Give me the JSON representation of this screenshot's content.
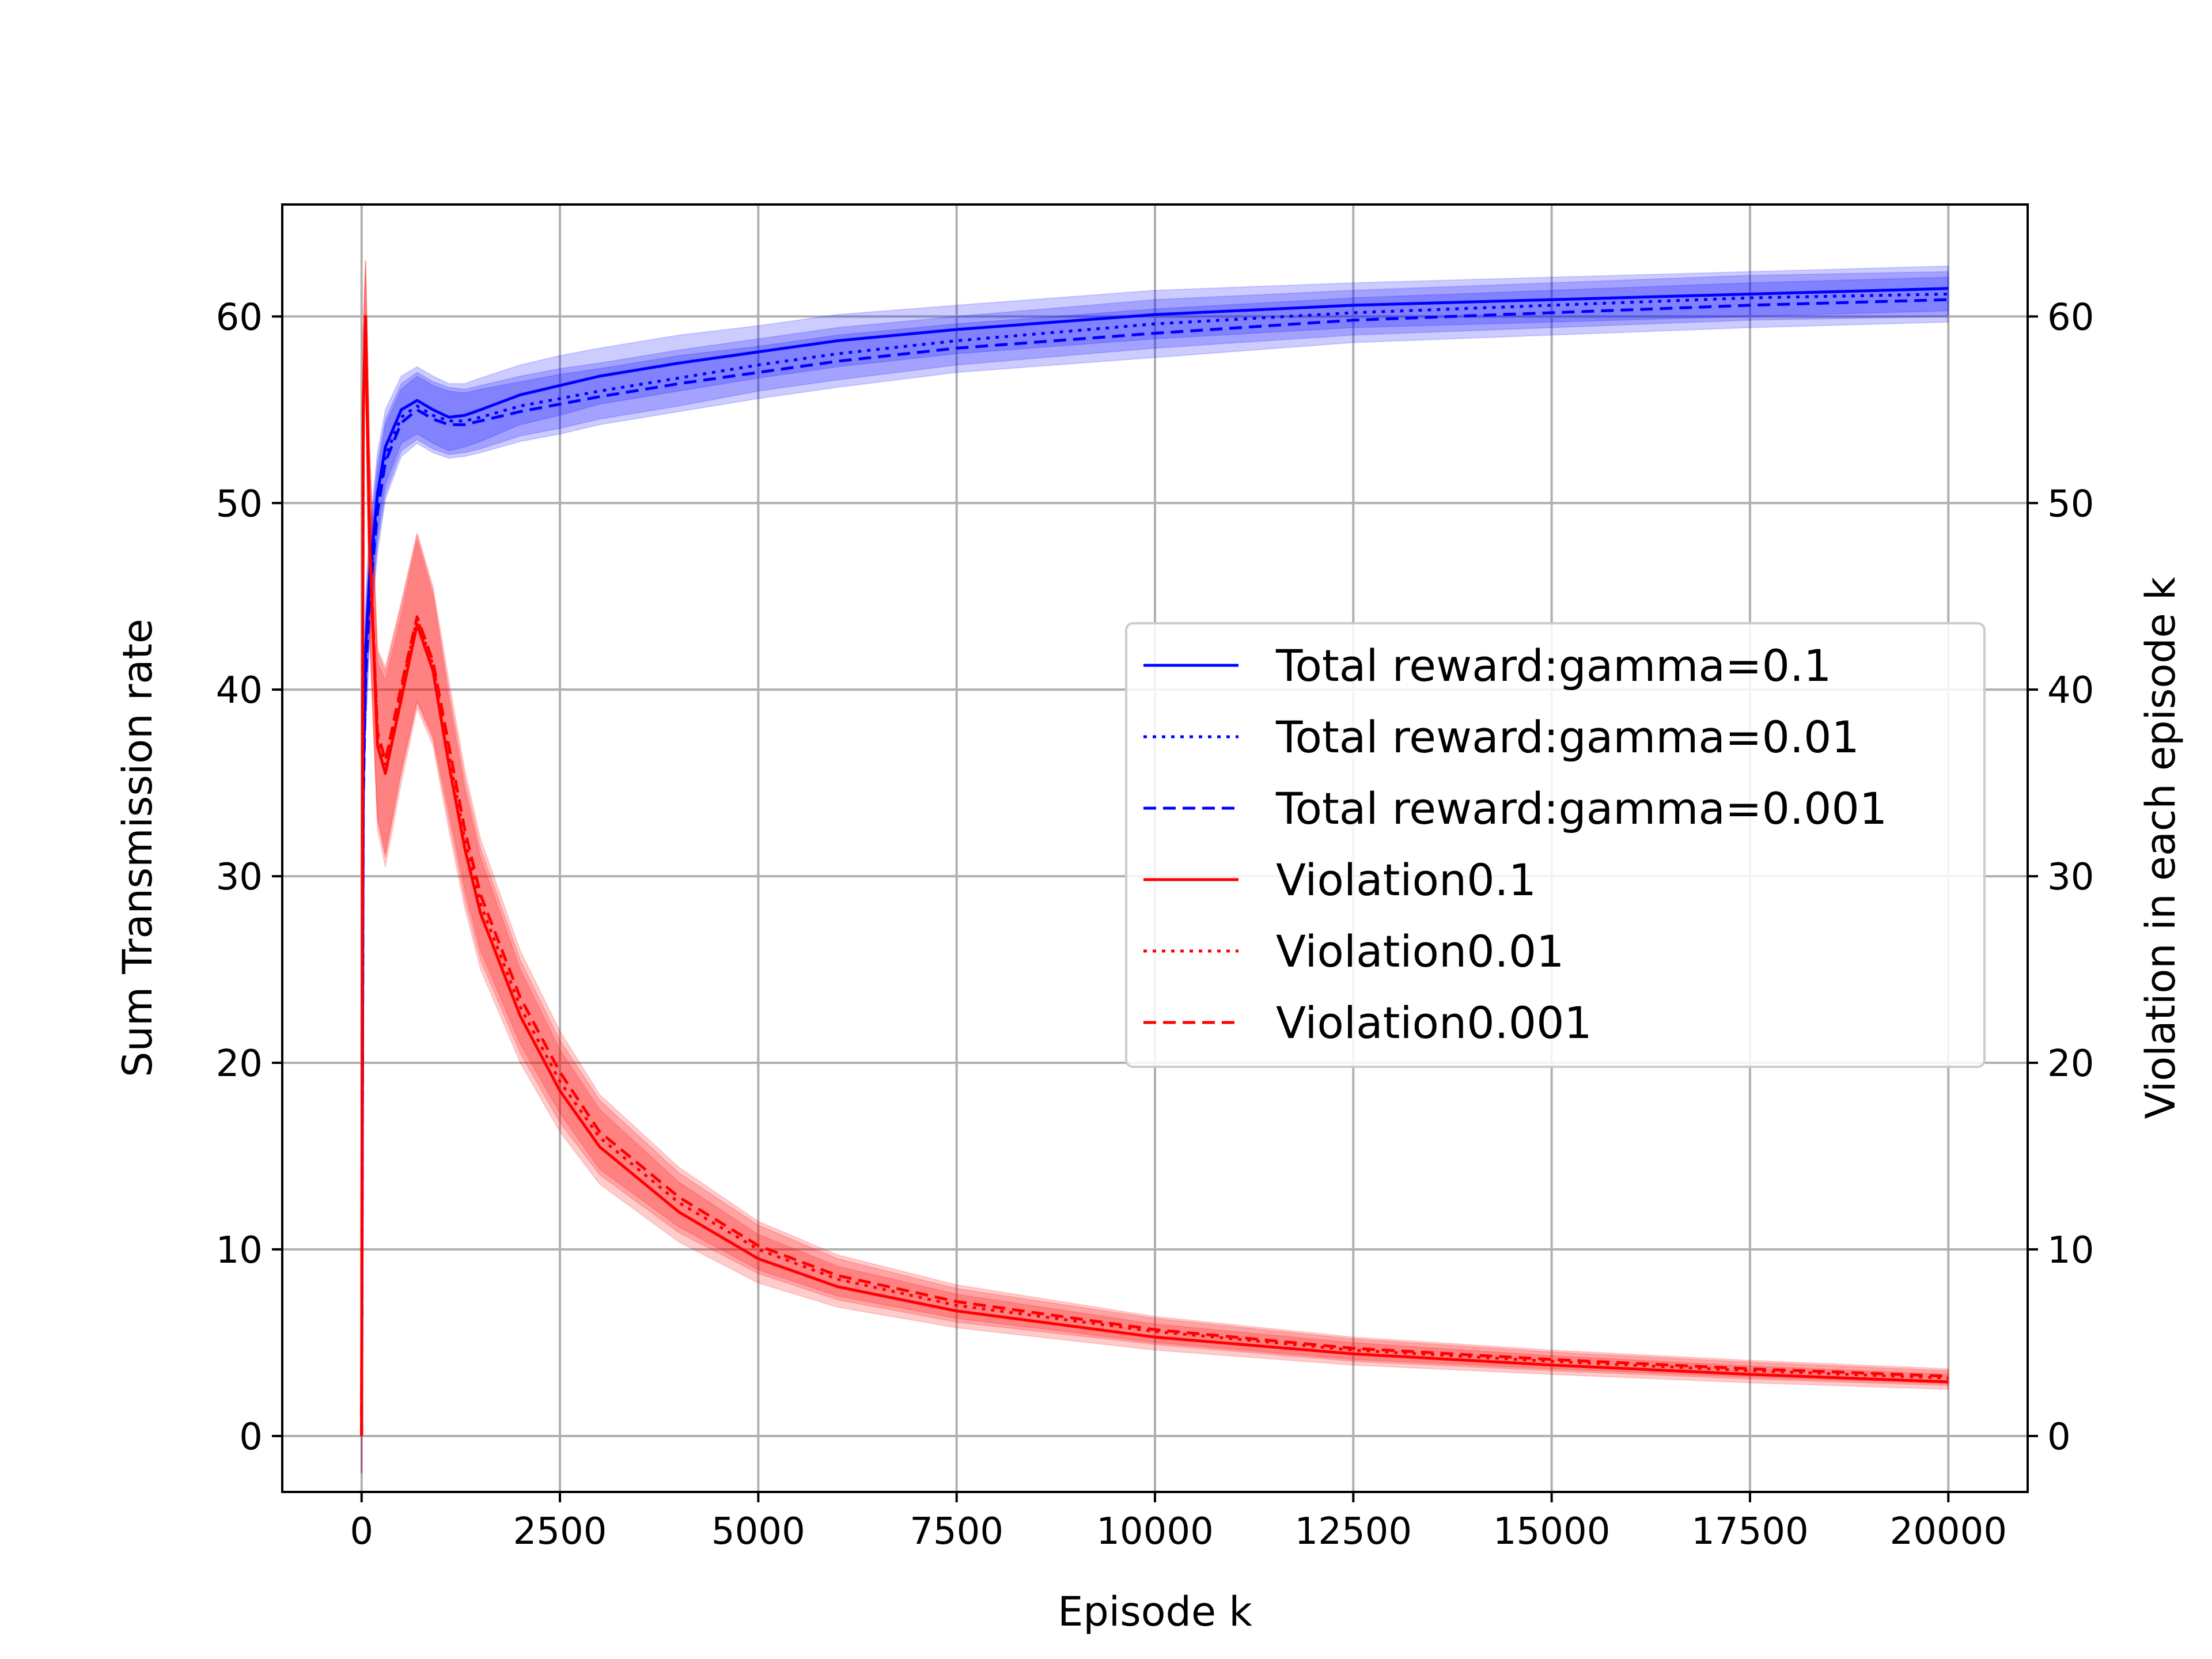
{
  "chart_data": {
    "type": "line",
    "title": "",
    "xlabel": "Episode k",
    "ylabel": "Sum Transmission rate",
    "ylabel_right": "Violation in each episode k",
    "xlim": [
      -1000,
      21000
    ],
    "ylim": [
      -3,
      66
    ],
    "ylim_right": [
      -3,
      66
    ],
    "grid": true,
    "legend_position": "center-right",
    "x_ticks": [
      0,
      2500,
      5000,
      7500,
      10000,
      12500,
      15000,
      17500,
      20000
    ],
    "x_tick_labels": [
      "0",
      "2500",
      "5000",
      "7500",
      "10000",
      "12500",
      "15000",
      "17500",
      "20000"
    ],
    "y_ticks": [
      0,
      10,
      20,
      30,
      40,
      50,
      60
    ],
    "y_tick_labels": [
      "0",
      "10",
      "20",
      "30",
      "40",
      "50",
      "60"
    ],
    "y_tick_labels_right": [
      "0",
      "10",
      "20",
      "30",
      "40",
      "50",
      "60"
    ],
    "x": [
      0,
      20,
      50,
      100,
      200,
      300,
      500,
      700,
      900,
      1100,
      1300,
      1500,
      2000,
      2500,
      3000,
      4000,
      5000,
      6000,
      7500,
      10000,
      12500,
      15000,
      17500,
      20000
    ],
    "series": [
      {
        "name": "Total reward:gamma=0.1",
        "color": "#0000ff",
        "style": "solid",
        "values": [
          0,
          36,
          42,
          46,
          50.5,
          53,
          55,
          55.5,
          55,
          54.6,
          54.7,
          55,
          55.8,
          56.3,
          56.8,
          57.5,
          58.1,
          58.7,
          59.3,
          60.1,
          60.6,
          60.9,
          61.2,
          61.5
        ],
        "band": [
          2.0,
          3.5,
          3.0,
          2.5,
          2.2,
          2.0,
          1.8,
          1.8,
          1.8,
          1.8,
          1.7,
          1.7,
          1.6,
          1.6,
          1.5,
          1.5,
          1.4,
          1.4,
          1.3,
          1.3,
          1.2,
          1.2,
          1.2,
          1.2
        ]
      },
      {
        "name": "Total reward:gamma=0.01",
        "color": "#0000ff",
        "style": "dotted",
        "values": [
          0,
          35,
          41,
          45.5,
          50,
          52.5,
          54.6,
          55.2,
          54.7,
          54.4,
          54.4,
          54.6,
          55.2,
          55.6,
          56,
          56.7,
          57.4,
          58,
          58.7,
          59.6,
          60.2,
          60.6,
          61,
          61.2
        ],
        "band": [
          2.0,
          3.5,
          3.0,
          2.5,
          2.2,
          2.0,
          1.8,
          1.8,
          1.8,
          1.8,
          1.7,
          1.7,
          1.6,
          1.6,
          1.5,
          1.5,
          1.4,
          1.4,
          1.3,
          1.3,
          1.2,
          1.2,
          1.2,
          1.2
        ]
      },
      {
        "name": "Total reward:gamma=0.001",
        "color": "#0000ff",
        "style": "dashed",
        "values": [
          0,
          34,
          40.5,
          45,
          49.5,
          52.2,
          54.3,
          55,
          54.5,
          54.2,
          54.2,
          54.4,
          54.9,
          55.3,
          55.7,
          56.4,
          57,
          57.6,
          58.3,
          59.1,
          59.8,
          60.2,
          60.6,
          60.9
        ],
        "band": [
          2.0,
          3.5,
          3.0,
          2.5,
          2.2,
          2.0,
          1.8,
          1.8,
          1.8,
          1.8,
          1.7,
          1.7,
          1.6,
          1.6,
          1.5,
          1.5,
          1.4,
          1.4,
          1.3,
          1.3,
          1.2,
          1.2,
          1.2,
          1.2
        ]
      },
      {
        "name": "Violation0.1",
        "color": "#ff0000",
        "style": "solid",
        "values": [
          0,
          55,
          60,
          48,
          37,
          35.5,
          39.5,
          43.5,
          41,
          36,
          31.5,
          28,
          22.5,
          18.5,
          15.5,
          12,
          9.5,
          8,
          6.7,
          5.3,
          4.4,
          3.8,
          3.3,
          2.9
        ],
        "band": [
          2.0,
          4.0,
          3.0,
          5.0,
          4.5,
          5.0,
          4.5,
          4.5,
          4.0,
          3.5,
          3.2,
          3.0,
          2.5,
          2.2,
          2.0,
          1.6,
          1.3,
          1.1,
          0.9,
          0.7,
          0.6,
          0.5,
          0.45,
          0.4
        ]
      },
      {
        "name": "Violation0.01",
        "color": "#ff0000",
        "style": "dotted",
        "values": [
          0,
          55,
          60,
          48,
          37.5,
          36,
          40,
          43.8,
          41.3,
          36.5,
          32,
          28.5,
          23,
          19,
          16,
          12.5,
          10,
          8.4,
          7,
          5.6,
          4.6,
          4,
          3.5,
          3.1
        ],
        "band": [
          2.0,
          4.0,
          3.0,
          5.0,
          4.5,
          5.0,
          4.5,
          4.5,
          4.0,
          3.5,
          3.2,
          3.0,
          2.5,
          2.2,
          2.0,
          1.6,
          1.3,
          1.1,
          0.9,
          0.7,
          0.6,
          0.5,
          0.45,
          0.4
        ]
      },
      {
        "name": "Violation0.001",
        "color": "#ff0000",
        "style": "dashed",
        "values": [
          0,
          55,
          60,
          48,
          37.7,
          36.2,
          40.2,
          43.9,
          41.5,
          37,
          32.5,
          29,
          23.5,
          19.5,
          16.3,
          12.8,
          10.2,
          8.6,
          7.2,
          5.7,
          4.7,
          4.1,
          3.6,
          3.2
        ],
        "band": [
          2.0,
          4.0,
          3.0,
          5.0,
          4.5,
          5.0,
          4.5,
          4.5,
          4.0,
          3.5,
          3.2,
          3.0,
          2.5,
          2.2,
          2.0,
          1.6,
          1.3,
          1.1,
          0.9,
          0.7,
          0.6,
          0.5,
          0.45,
          0.4
        ]
      }
    ]
  }
}
